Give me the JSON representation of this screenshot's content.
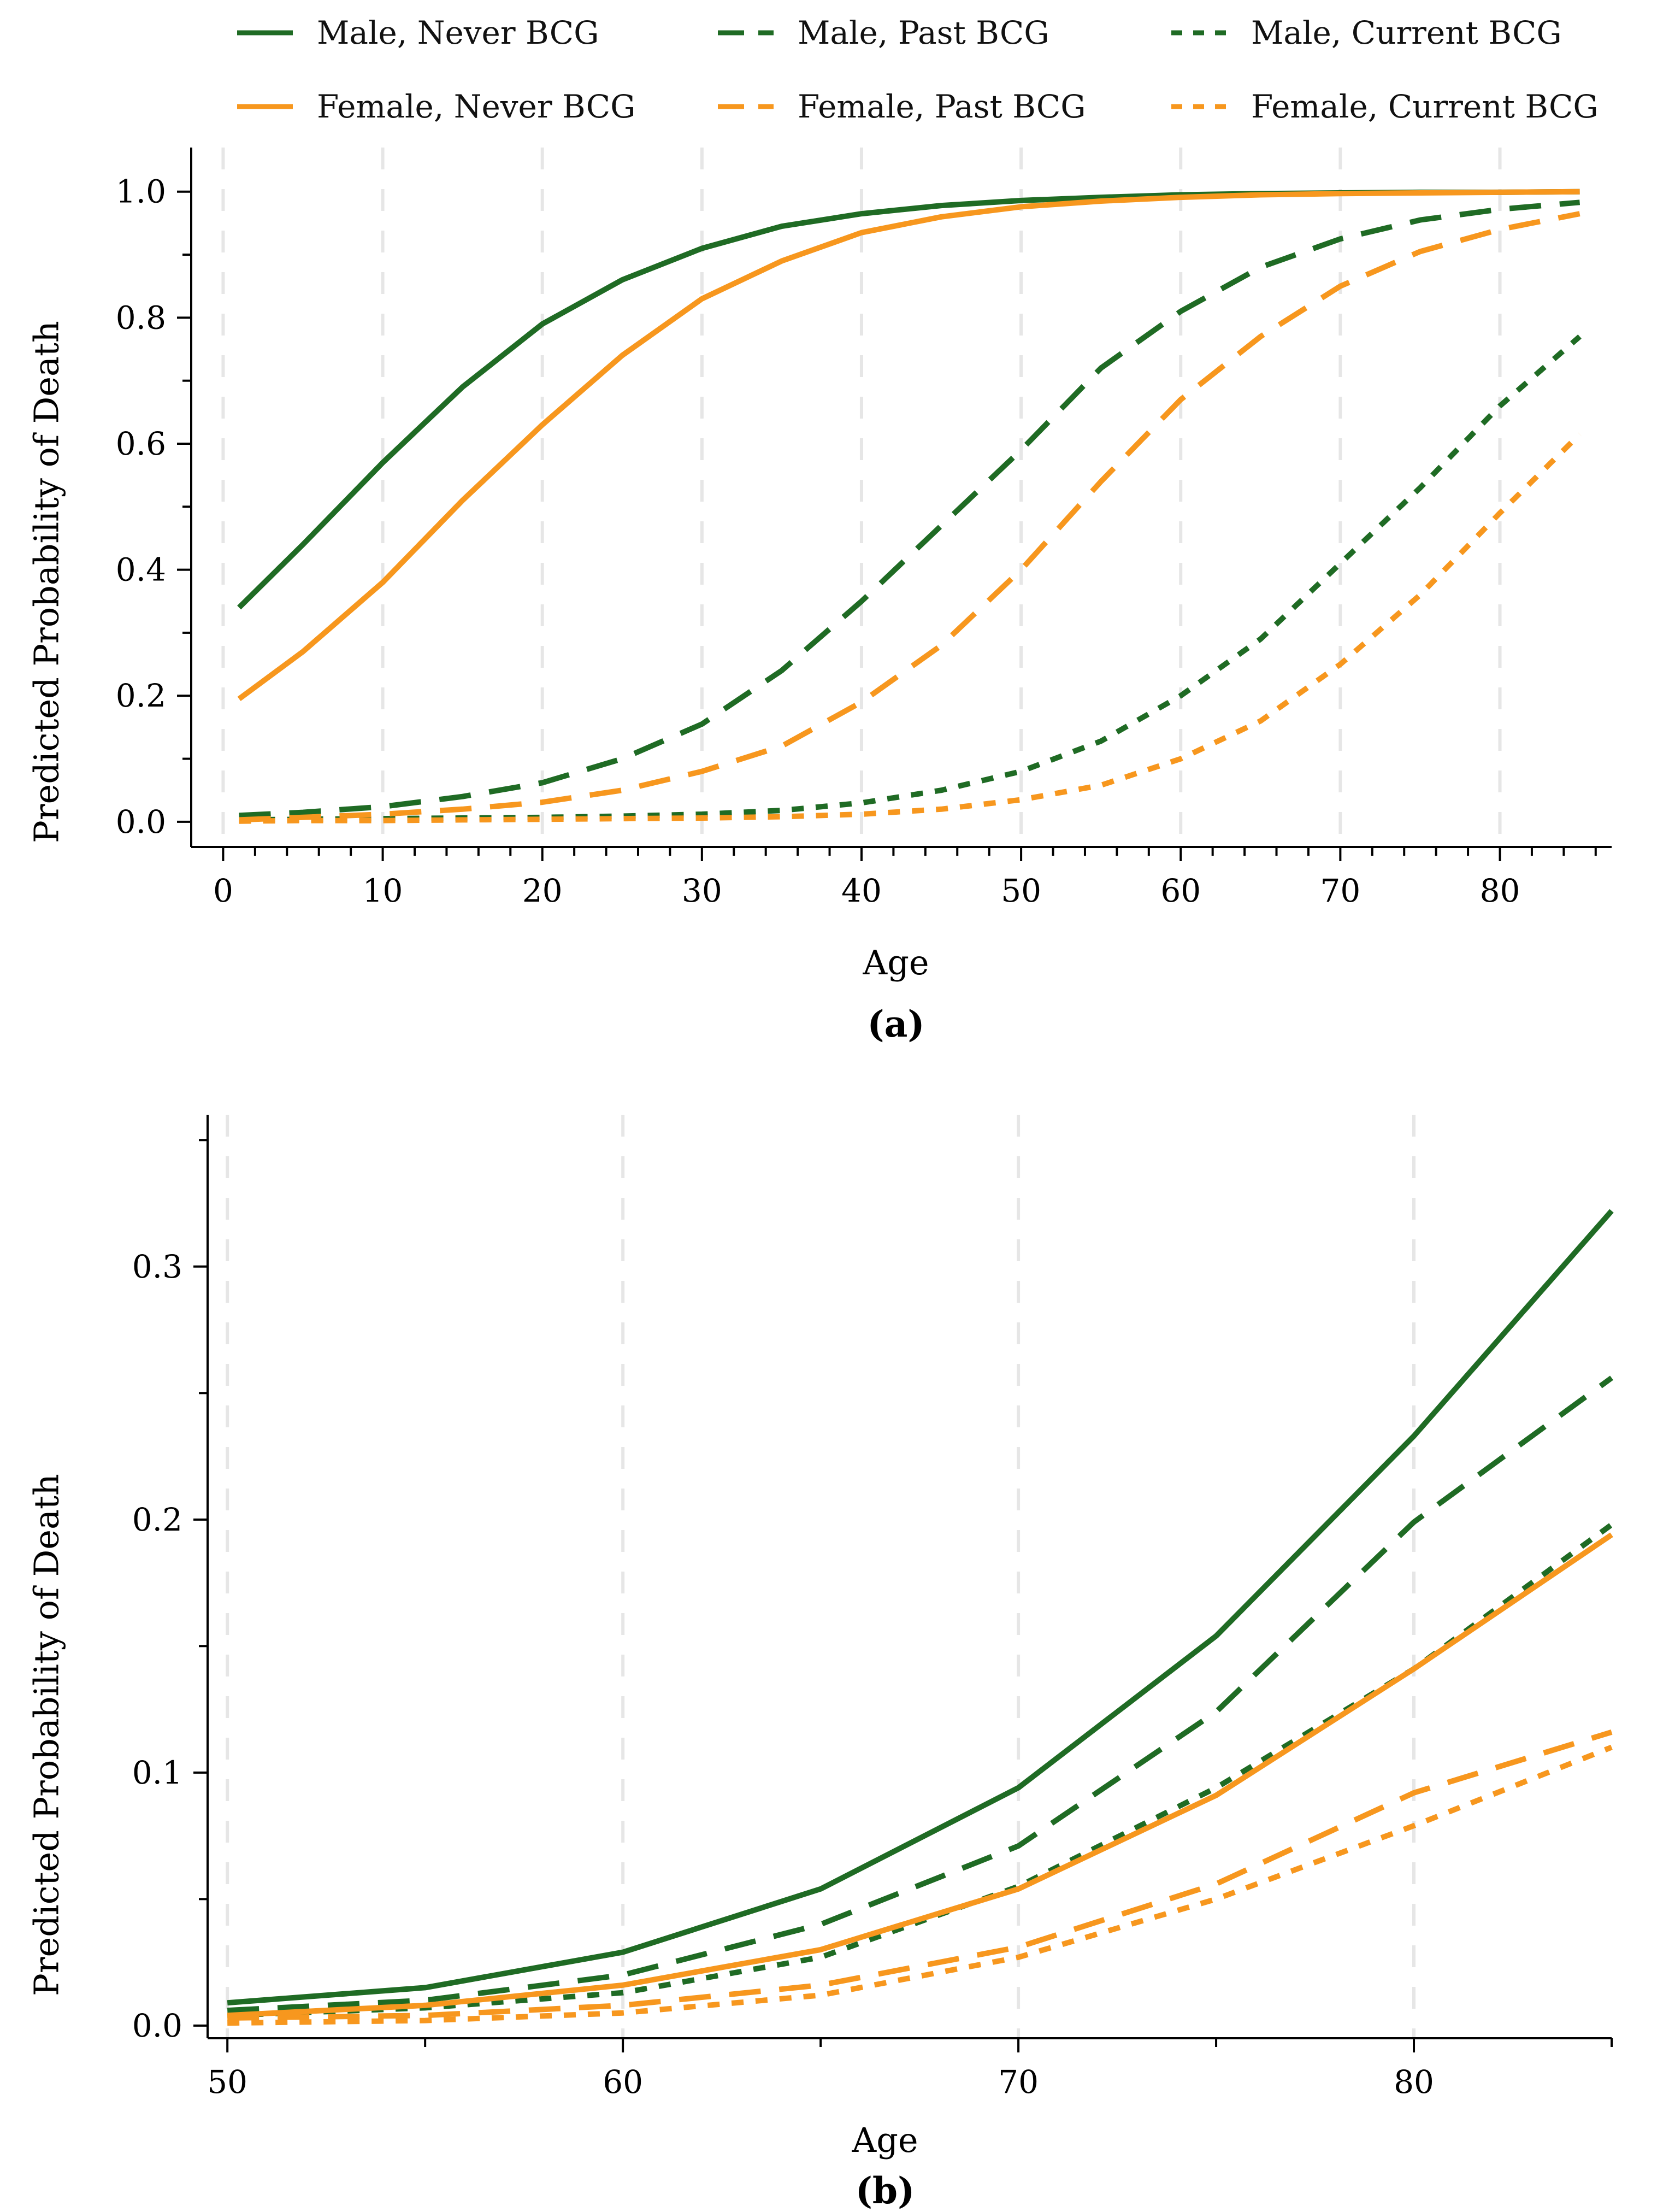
{
  "figure": {
    "panel_a_label": "(a)",
    "panel_b_label": "(b)"
  },
  "legend": {
    "items": [
      {
        "label": "Male, Never BCG",
        "color": "#1f6b24",
        "dash": "solid"
      },
      {
        "label": "Male, Past BCG",
        "color": "#1f6b24",
        "dash": "long"
      },
      {
        "label": "Male, Current BCG",
        "color": "#1f6b24",
        "dash": "short"
      },
      {
        "label": "Female, Never BCG",
        "color": "#f7971e",
        "dash": "solid"
      },
      {
        "label": "Female, Past BCG",
        "color": "#f7971e",
        "dash": "long"
      },
      {
        "label": "Female, Current BCG",
        "color": "#f7971e",
        "dash": "short"
      }
    ]
  },
  "chart_data": [
    {
      "type": "line",
      "panel": "(a)",
      "xlabel": "Age",
      "ylabel": "Predicted Probability of Death",
      "xlim": [
        -2,
        87
      ],
      "ylim": [
        -0.04,
        1.07
      ],
      "xticks": [
        0,
        10,
        20,
        30,
        40,
        50,
        60,
        70,
        80
      ],
      "yticks": [
        0.0,
        0.2,
        0.4,
        0.6,
        0.8,
        1.0
      ],
      "ytick_labels": [
        "0.0",
        "0.2",
        "0.4",
        "0.6",
        "0.8",
        "1.0"
      ],
      "grid": "vertical dashed",
      "x": [
        1,
        5,
        10,
        15,
        20,
        25,
        30,
        35,
        40,
        45,
        50,
        55,
        60,
        65,
        70,
        75,
        80,
        85
      ],
      "series": [
        {
          "name": "Male, Never BCG",
          "color": "#1f6b24",
          "dash": "solid",
          "values": [
            0.34,
            0.44,
            0.57,
            0.69,
            0.79,
            0.86,
            0.91,
            0.945,
            0.965,
            0.978,
            0.986,
            0.991,
            0.995,
            0.997,
            0.998,
            0.999,
            0.999,
            1.0
          ]
        },
        {
          "name": "Male, Past BCG",
          "color": "#1f6b24",
          "dash": "long",
          "values": [
            0.01,
            0.015,
            0.024,
            0.04,
            0.062,
            0.1,
            0.155,
            0.24,
            0.35,
            0.47,
            0.59,
            0.72,
            0.81,
            0.88,
            0.925,
            0.955,
            0.972,
            0.983
          ]
        },
        {
          "name": "Male, Current BCG",
          "color": "#1f6b24",
          "dash": "short",
          "values": [
            0.003,
            0.004,
            0.005,
            0.006,
            0.007,
            0.009,
            0.012,
            0.018,
            0.03,
            0.05,
            0.08,
            0.128,
            0.2,
            0.29,
            0.41,
            0.53,
            0.66,
            0.77
          ]
        },
        {
          "name": "Female, Never BCG",
          "color": "#f7971e",
          "dash": "solid",
          "values": [
            0.195,
            0.27,
            0.38,
            0.51,
            0.63,
            0.74,
            0.83,
            0.89,
            0.935,
            0.96,
            0.976,
            0.985,
            0.991,
            0.995,
            0.997,
            0.998,
            0.999,
            1.0
          ]
        },
        {
          "name": "Female, Past BCG",
          "color": "#f7971e",
          "dash": "long",
          "values": [
            0.003,
            0.007,
            0.012,
            0.02,
            0.031,
            0.05,
            0.08,
            0.12,
            0.19,
            0.28,
            0.4,
            0.54,
            0.67,
            0.77,
            0.85,
            0.905,
            0.94,
            0.965
          ]
        },
        {
          "name": "Female, Current BCG",
          "color": "#f7971e",
          "dash": "short",
          "values": [
            0.001,
            0.002,
            0.002,
            0.003,
            0.004,
            0.005,
            0.006,
            0.008,
            0.012,
            0.02,
            0.035,
            0.058,
            0.1,
            0.16,
            0.25,
            0.36,
            0.49,
            0.615
          ]
        }
      ]
    },
    {
      "type": "line",
      "panel": "(b)",
      "xlabel": "Age",
      "ylabel": "Predicted Probability of Death",
      "xlim": [
        49.5,
        85
      ],
      "ylim": [
        -0.005,
        0.36
      ],
      "xticks": [
        50,
        60,
        70,
        80
      ],
      "yticks": [
        0.0,
        0.1,
        0.2,
        0.3
      ],
      "ytick_labels": [
        "0.0",
        "0.1",
        "0.2",
        "0.3"
      ],
      "grid": "vertical dashed",
      "x": [
        50,
        55,
        60,
        65,
        70,
        75,
        80,
        85
      ],
      "series": [
        {
          "name": "Male, Never BCG",
          "color": "#1f6b24",
          "dash": "solid",
          "values": [
            0.009,
            0.015,
            0.029,
            0.054,
            0.094,
            0.154,
            0.233,
            0.322
          ]
        },
        {
          "name": "Male, Past BCG",
          "color": "#1f6b24",
          "dash": "long",
          "values": [
            0.006,
            0.01,
            0.02,
            0.04,
            0.071,
            0.124,
            0.199,
            0.256
          ]
        },
        {
          "name": "Male, Current BCG",
          "color": "#1f6b24",
          "dash": "short",
          "values": [
            0.004,
            0.007,
            0.013,
            0.027,
            0.055,
            0.094,
            0.141,
            0.198
          ]
        },
        {
          "name": "Female, Never BCG",
          "color": "#f7971e",
          "dash": "solid",
          "values": [
            0.004,
            0.008,
            0.016,
            0.03,
            0.054,
            0.091,
            0.141,
            0.194
          ]
        },
        {
          "name": "Female, Past BCG",
          "color": "#f7971e",
          "dash": "long",
          "values": [
            0.003,
            0.004,
            0.008,
            0.016,
            0.031,
            0.056,
            0.092,
            0.116
          ]
        },
        {
          "name": "Female, Current BCG",
          "color": "#f7971e",
          "dash": "short",
          "values": [
            0.001,
            0.002,
            0.005,
            0.012,
            0.027,
            0.05,
            0.079,
            0.11
          ]
        }
      ]
    }
  ]
}
